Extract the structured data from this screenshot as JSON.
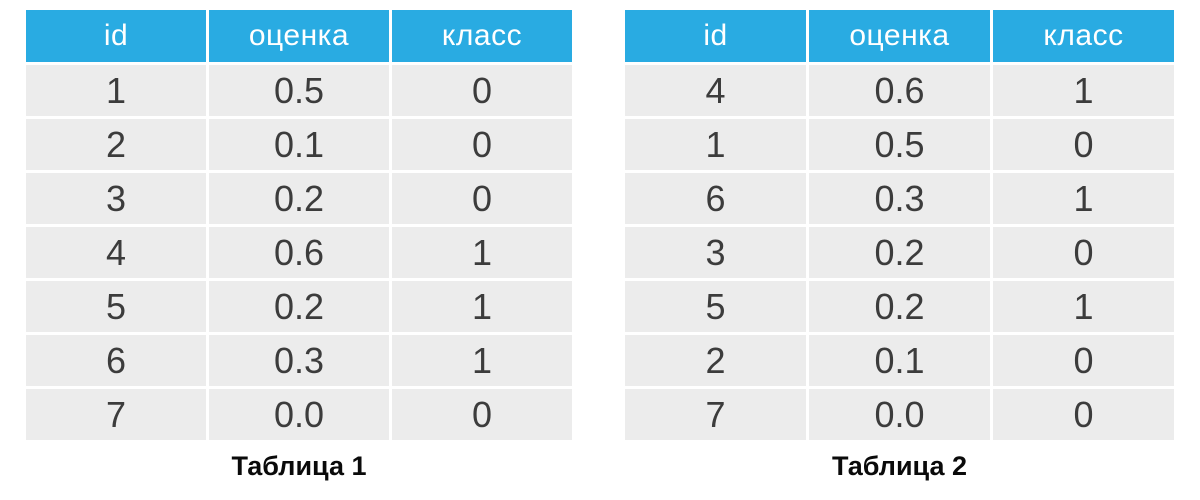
{
  "colors": {
    "accent": "#29ABE2",
    "row_bg": "#ECECEC",
    "header_text": "#FFFFFF",
    "body_text": "#3C3C3C"
  },
  "tables": [
    {
      "caption": "Таблица 1",
      "columns": [
        "id",
        "оценка",
        "класс"
      ],
      "rows": [
        [
          "1",
          "0.5",
          "0"
        ],
        [
          "2",
          "0.1",
          "0"
        ],
        [
          "3",
          "0.2",
          "0"
        ],
        [
          "4",
          "0.6",
          "1"
        ],
        [
          "5",
          "0.2",
          "1"
        ],
        [
          "6",
          "0.3",
          "1"
        ],
        [
          "7",
          "0.0",
          "0"
        ]
      ]
    },
    {
      "caption": "Таблица 2",
      "columns": [
        "id",
        "оценка",
        "класс"
      ],
      "rows": [
        [
          "4",
          "0.6",
          "1"
        ],
        [
          "1",
          "0.5",
          "0"
        ],
        [
          "6",
          "0.3",
          "1"
        ],
        [
          "3",
          "0.2",
          "0"
        ],
        [
          "5",
          "0.2",
          "1"
        ],
        [
          "2",
          "0.1",
          "0"
        ],
        [
          "7",
          "0.0",
          "0"
        ]
      ]
    }
  ],
  "chart_data": [
    {
      "type": "table",
      "title": "Таблица 1",
      "columns": [
        "id",
        "оценка",
        "класс"
      ],
      "rows": [
        [
          1,
          0.5,
          0
        ],
        [
          2,
          0.1,
          0
        ],
        [
          3,
          0.2,
          0
        ],
        [
          4,
          0.6,
          1
        ],
        [
          5,
          0.2,
          1
        ],
        [
          6,
          0.3,
          1
        ],
        [
          7,
          0.0,
          0
        ]
      ]
    },
    {
      "type": "table",
      "title": "Таблица 2",
      "columns": [
        "id",
        "оценка",
        "класс"
      ],
      "rows": [
        [
          4,
          0.6,
          1
        ],
        [
          1,
          0.5,
          0
        ],
        [
          6,
          0.3,
          1
        ],
        [
          3,
          0.2,
          0
        ],
        [
          5,
          0.2,
          1
        ],
        [
          2,
          0.1,
          0
        ],
        [
          7,
          0.0,
          0
        ]
      ]
    }
  ]
}
